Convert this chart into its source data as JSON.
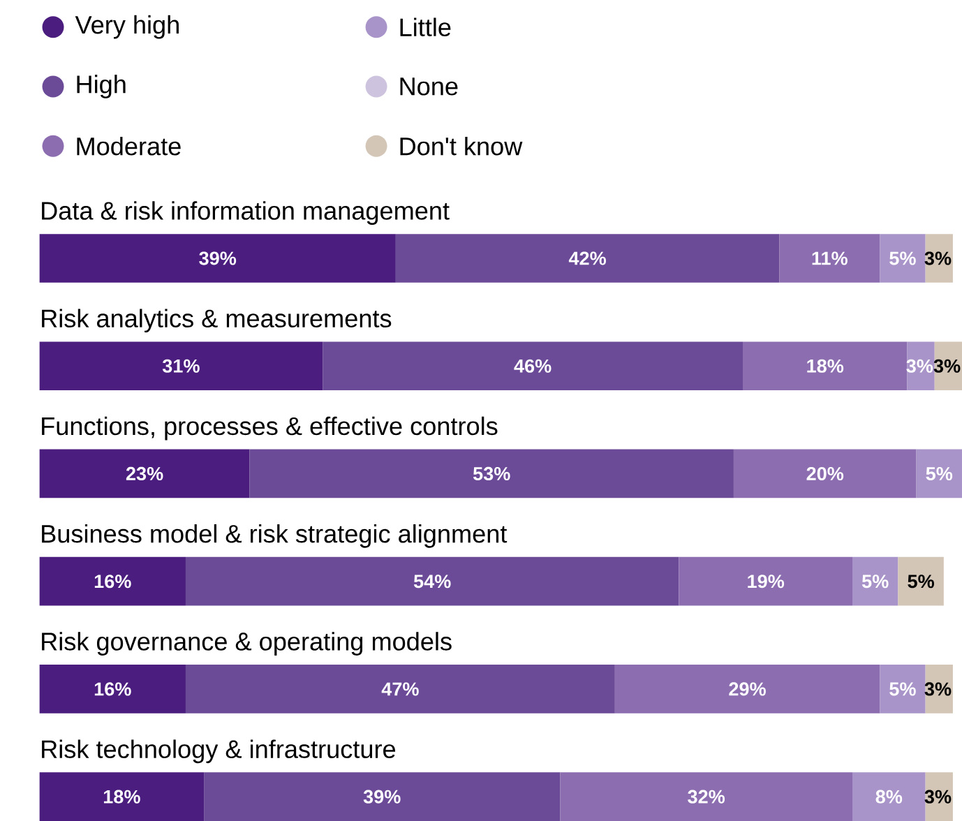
{
  "chart_data": {
    "type": "bar",
    "orientation": "horizontal",
    "stacked": true,
    "legend": "top left",
    "categories": [
      "Data & risk information management",
      "Risk analytics & measurements",
      "Functions, processes & effective controls",
      "Business model & risk strategic alignment",
      "Risk governance & operating models",
      "Risk technology & infrastructure"
    ],
    "series": [
      {
        "name": "Very high",
        "color": "#4a1d7e",
        "values": [
          39,
          31,
          23,
          16,
          16,
          18
        ],
        "value_labels": [
          "39%",
          "31%",
          "23%",
          "16%",
          "16%",
          "18%"
        ]
      },
      {
        "name": "High",
        "color": "#6b4a97",
        "values": [
          42,
          46,
          53,
          54,
          47,
          39
        ],
        "value_labels": [
          "42%",
          "46%",
          "53%",
          "54%",
          "47%",
          "39%"
        ]
      },
      {
        "name": "Moderate",
        "color": "#8b6db0",
        "values": [
          11,
          18,
          20,
          19,
          29,
          32
        ],
        "value_labels": [
          "11%",
          "18%",
          "20%",
          "19%",
          "29%",
          "32%"
        ]
      },
      {
        "name": "Little",
        "color": "#a894c8",
        "values": [
          5,
          3,
          5,
          5,
          5,
          8
        ],
        "value_labels": [
          "5%",
          "3%",
          "5%",
          "5%",
          "5%",
          "8%"
        ]
      },
      {
        "name": "None",
        "color": "#cdc3df",
        "values": [
          null,
          null,
          null,
          null,
          null,
          null
        ],
        "value_labels": [
          null,
          null,
          null,
          null,
          null,
          null
        ]
      },
      {
        "name": "Don't know",
        "color": "#d3c6b6",
        "values": [
          3,
          3,
          null,
          5,
          3,
          3
        ],
        "value_labels": [
          "3%",
          "3%",
          null,
          "5%",
          "3%",
          "3%"
        ]
      }
    ]
  }
}
